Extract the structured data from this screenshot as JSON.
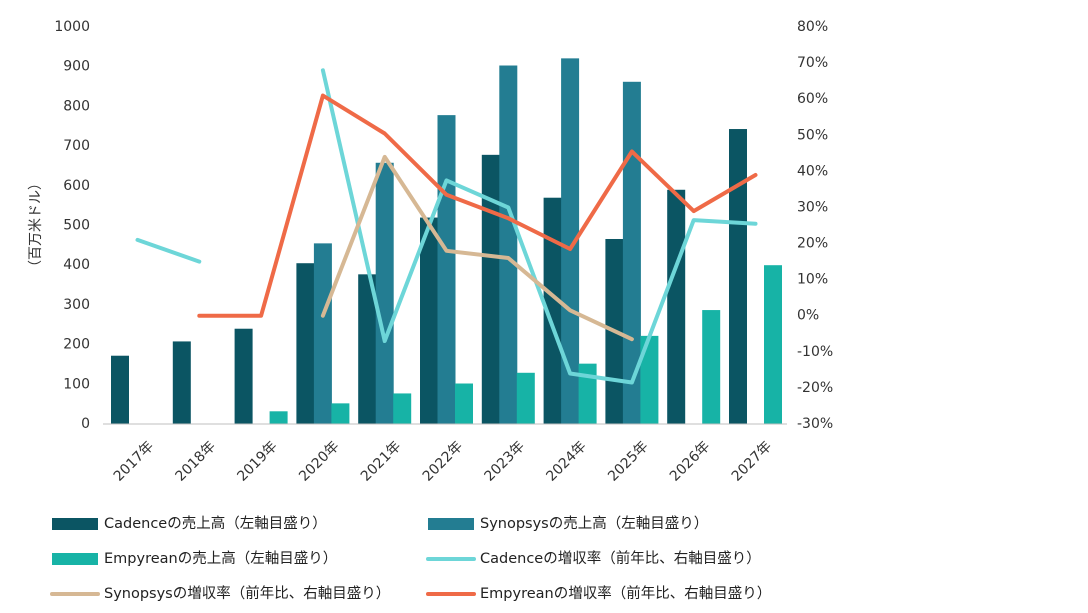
{
  "chart_data": {
    "type": "bar",
    "categories": [
      "2017年",
      "2018年",
      "2019年",
      "2020年",
      "2021年",
      "2022年",
      "2023年",
      "2024年",
      "2025年",
      "2026年",
      "2027年"
    ],
    "ylabel": "（百万米ドル）",
    "y_left": {
      "min": 0,
      "max": 1000,
      "ticks": [
        0,
        100,
        200,
        300,
        400,
        500,
        600,
        700,
        800,
        900,
        1000
      ]
    },
    "y_right": {
      "min": -30,
      "max": 80,
      "ticks": [
        -30,
        -20,
        -10,
        0,
        10,
        20,
        30,
        40,
        50,
        60,
        70,
        80
      ],
      "tick_labels": [
        "-30%",
        "-20%",
        "-10%",
        "0%",
        "10%",
        "20%",
        "30%",
        "40%",
        "50%",
        "60%",
        "70%",
        "80%"
      ]
    },
    "bar_series": [
      {
        "name": "Cadenceの売上高（左軸目盛り）",
        "color": "#0b5563",
        "values": [
          172,
          208,
          240,
          405,
          377,
          520,
          678,
          570,
          466,
          590,
          743
        ]
      },
      {
        "name": "Synopsysの売上高（左軸目盛り）",
        "color": "#237d92",
        "values": [
          null,
          null,
          null,
          455,
          658,
          778,
          903,
          921,
          862,
          null,
          null
        ]
      },
      {
        "name": "Empyreanの売上高（左軸目盛り）",
        "color": "#17b3a6",
        "values": [
          null,
          null,
          32,
          52,
          77,
          102,
          129,
          152,
          222,
          287,
          400
        ]
      }
    ],
    "line_series": [
      {
        "name": "Cadenceの増収率（前年比、右軸目盛り）",
        "color": "#6dd6d8",
        "values": [
          21,
          15,
          null,
          68,
          -7,
          37.5,
          30,
          -16,
          -18.5,
          26.5,
          25.5
        ]
      },
      {
        "name": "Synopsysの増収率（前年比、右軸目盛り）",
        "color": "#d6b894",
        "values": [
          null,
          null,
          null,
          0,
          44,
          18,
          16,
          1.5,
          -6.5,
          null,
          null
        ]
      },
      {
        "name": "Empyreanの増収率（前年比、右軸目盛り）",
        "color": "#ef6a47",
        "values": [
          null,
          0,
          0,
          61,
          50.5,
          33.5,
          27,
          18.5,
          45.5,
          29,
          39
        ]
      }
    ],
    "legend_position": "bottom",
    "grid": false
  }
}
